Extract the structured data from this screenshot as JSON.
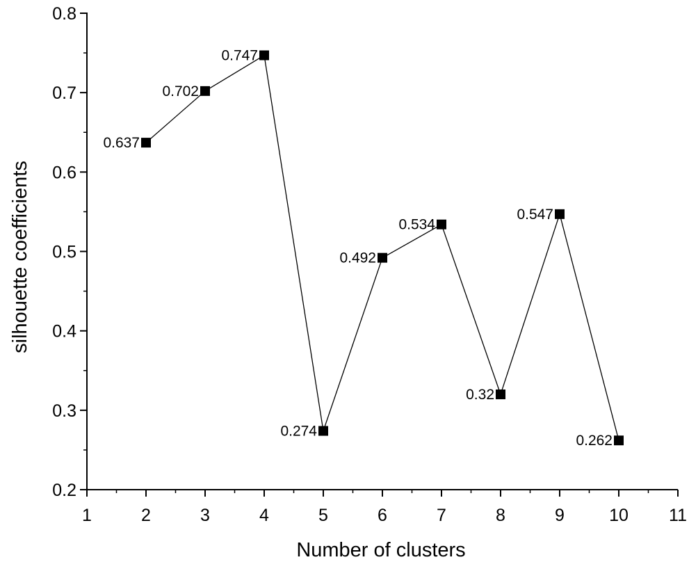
{
  "chart_data": {
    "type": "line",
    "title": "",
    "xlabel": "Number of clusters",
    "ylabel": "silhouette coefficients",
    "xlim": [
      1,
      11
    ],
    "ylim": [
      0.2,
      0.8
    ],
    "x_ticks": [
      1,
      2,
      3,
      4,
      5,
      6,
      7,
      8,
      9,
      10,
      11
    ],
    "x_tick_labels": [
      "1",
      "2",
      "3",
      "4",
      "5",
      "6",
      "7",
      "8",
      "9",
      "10",
      "11"
    ],
    "y_ticks": [
      0.2,
      0.3,
      0.4,
      0.5,
      0.6,
      0.7,
      0.8
    ],
    "y_tick_labels": [
      "0.2",
      "0.3",
      "0.4",
      "0.5",
      "0.6",
      "0.7",
      "0.8"
    ],
    "grid": false,
    "marker": "square",
    "series": [
      {
        "name": "silhouette coefficients",
        "x": [
          2,
          3,
          4,
          5,
          6,
          7,
          8,
          9,
          10
        ],
        "values": [
          0.637,
          0.702,
          0.747,
          0.274,
          0.492,
          0.534,
          0.32,
          0.547,
          0.262
        ],
        "labels": [
          "0.637",
          "0.702",
          "0.747",
          "0.274",
          "0.492",
          "0.534",
          "0.32",
          "0.547",
          "0.262"
        ],
        "color": "#000000"
      }
    ]
  }
}
